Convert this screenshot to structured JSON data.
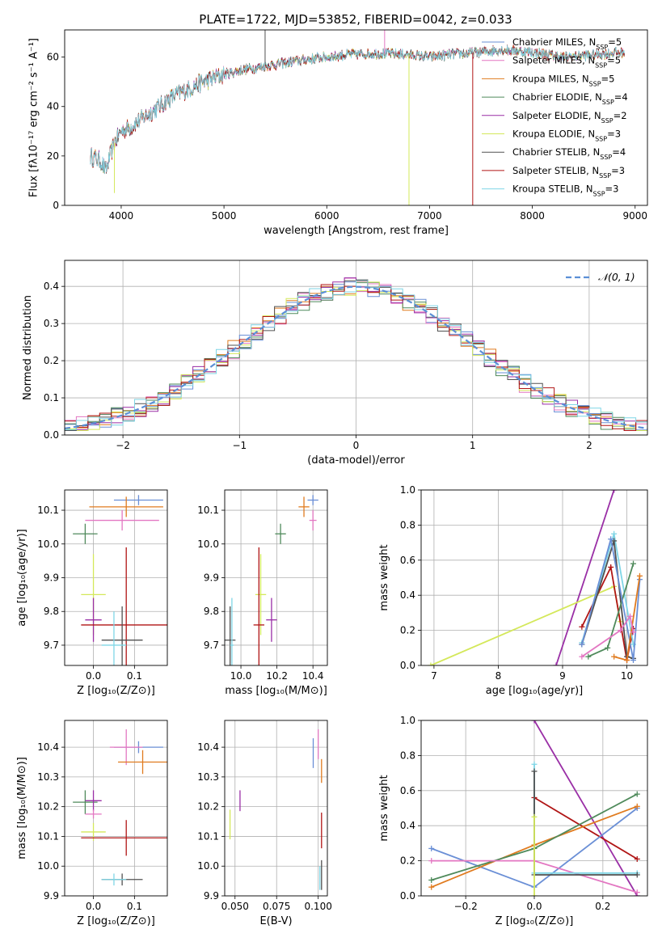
{
  "title": "PLATE=1722, MJD=53852, FIBERID=0042, z=0.033",
  "chart_data": [
    {
      "id": "spectrum",
      "type": "line",
      "xlabel": "wavelength [Angstrom, rest frame]",
      "ylabel": "Flux [fλ10⁻¹⁷ erg cm⁻² s⁻¹ A⁻¹]",
      "xlim": [
        3450,
        9120
      ],
      "ylim": [
        0,
        71
      ],
      "xticks": [
        4000,
        5000,
        6000,
        7000,
        8000,
        9000
      ],
      "yticks": [
        0,
        20,
        40,
        60
      ],
      "grid": false,
      "legend_position": "top-right",
      "series": [
        {
          "name": "Chabrier MILES, N_SSP=5",
          "label_main": "Chabrier MILES, N",
          "label_sub": "SSP",
          "label_tail": "=5",
          "color": "#6a8fd6"
        },
        {
          "name": "Salpeter MILES, N_SSP=5",
          "label_main": "Salpeter MILES, N",
          "label_sub": "SSP",
          "label_tail": "=5",
          "color": "#e377c2"
        },
        {
          "name": "Kroupa MILES, N_SSP=5",
          "label_main": "Kroupa MILES, N",
          "label_sub": "SSP",
          "label_tail": "=5",
          "color": "#e07b1f"
        },
        {
          "name": "Chabrier ELODIE, N_SSP=4",
          "label_main": "Chabrier ELODIE, N",
          "label_sub": "SSP",
          "label_tail": "=4",
          "color": "#4f8a5b"
        },
        {
          "name": "Salpeter ELODIE, N_SSP=2",
          "label_main": "Salpeter ELODIE, N",
          "label_sub": "SSP",
          "label_tail": "=2",
          "color": "#9a2fa6"
        },
        {
          "name": "Kroupa ELODIE, N_SSP=3",
          "label_main": "Kroupa ELODIE, N",
          "label_sub": "SSP",
          "label_tail": "=3",
          "color": "#d4e85a"
        },
        {
          "name": "Chabrier STELIB, N_SSP=4",
          "label_main": "Chabrier STELIB, N",
          "label_sub": "SSP",
          "label_tail": "=4",
          "color": "#505050"
        },
        {
          "name": "Salpeter STELIB, N_SSP=3",
          "label_main": "Salpeter STELIB, N",
          "label_sub": "SSP",
          "label_tail": "=3",
          "color": "#b01515"
        },
        {
          "name": "Kroupa STELIB, N_SSP=3",
          "label_main": "Kroupa STELIB, N",
          "label_sub": "SSP",
          "label_tail": "=3",
          "color": "#7fd6e6"
        }
      ],
      "continuum": [
        [
          3700,
          20
        ],
        [
          3800,
          18
        ],
        [
          3850,
          14
        ],
        [
          3930,
          25
        ],
        [
          4000,
          30
        ],
        [
          4100,
          32
        ],
        [
          4300,
          38
        ],
        [
          4500,
          44
        ],
        [
          4800,
          50
        ],
        [
          5000,
          53
        ],
        [
          5200,
          55
        ],
        [
          5500,
          57
        ],
        [
          5800,
          59
        ],
        [
          6000,
          60
        ],
        [
          6200,
          61
        ],
        [
          6500,
          61.5
        ],
        [
          6800,
          61
        ],
        [
          7000,
          60
        ],
        [
          7200,
          61
        ],
        [
          7500,
          62
        ],
        [
          7700,
          63
        ],
        [
          8000,
          62
        ],
        [
          8300,
          60
        ],
        [
          8600,
          61
        ],
        [
          8900,
          62
        ]
      ],
      "features": [
        {
          "x": 3934,
          "y": 5,
          "color": "#d4e85a"
        },
        {
          "x": 5400,
          "y": 71,
          "color": "#505050"
        },
        {
          "x": 6563,
          "y": 71,
          "color": "#e377c2"
        },
        {
          "x": 6800,
          "y": 0,
          "color": "#d4e85a"
        },
        {
          "x": 7420,
          "y": 0,
          "color": "#b01515"
        }
      ]
    },
    {
      "id": "residuals",
      "type": "bar",
      "xlabel": "(data-model)/error",
      "ylabel": "Normed distribution",
      "xlim": [
        -2.5,
        2.5
      ],
      "ylim": [
        0,
        0.47
      ],
      "xticks": [
        -2,
        -1,
        0,
        1,
        2
      ],
      "yticks": [
        0.0,
        0.1,
        0.2,
        0.3,
        0.4
      ],
      "grid": true,
      "bin_width": 0.1,
      "legend_label": "𝒩(0, 1)",
      "legend_position": "top-right",
      "reference_curve_color": "#5b8fd6"
    },
    {
      "id": "age-vs-Z",
      "type": "scatter",
      "xlabel": "Z [log₁₀(Z/Z⊙)]",
      "ylabel": "age  [log₁₀(age/yr)]",
      "xlim": [
        -0.07,
        0.18
      ],
      "ylim": [
        9.64,
        10.16
      ],
      "xticks": [
        0.0,
        0.1
      ],
      "yticks": [
        9.7,
        9.8,
        9.9,
        10.0,
        10.1
      ],
      "grid": true,
      "points": [
        {
          "x": 0.11,
          "y": 10.13,
          "ex": 0.06,
          "ey": 0.015,
          "color": "#6a8fd6"
        },
        {
          "x": 0.08,
          "y": 10.11,
          "ex": 0.09,
          "ey": 0.03,
          "color": "#e07b1f"
        },
        {
          "x": 0.07,
          "y": 10.07,
          "ex": 0.09,
          "ey": 0.03,
          "color": "#e377c2"
        },
        {
          "x": -0.02,
          "y": 10.03,
          "ex": 0.03,
          "ey": 0.03,
          "color": "#4f8a5b"
        },
        {
          "x": 0.0,
          "y": 9.85,
          "ex": 0.03,
          "ey": 0.12,
          "color": "#d4e85a"
        },
        {
          "x": 0.0,
          "y": 9.775,
          "ex": 0.02,
          "ey": 0.065,
          "color": "#9a2fa6"
        },
        {
          "x": 0.08,
          "y": 9.76,
          "ex": 0.11,
          "ey": 0.23,
          "color": "#b01515"
        },
        {
          "x": 0.07,
          "y": 9.715,
          "ex": 0.05,
          "ey": 0.1,
          "color": "#505050"
        },
        {
          "x": 0.05,
          "y": 9.7,
          "ex": 0.03,
          "ey": 0.1,
          "color": "#7fd6e6"
        }
      ]
    },
    {
      "id": "age-vs-mass",
      "type": "scatter",
      "xlabel": "mass [log₁₀(M/M⊙)]",
      "ylabel": "",
      "xlim": [
        9.91,
        10.48
      ],
      "ylim": [
        9.64,
        10.16
      ],
      "xticks": [
        10.0,
        10.2,
        10.4
      ],
      "yticks": [
        9.7,
        9.8,
        9.9,
        10.0,
        10.1
      ],
      "grid": true,
      "points": [
        {
          "x": 10.4,
          "y": 10.13,
          "ex": 0.03,
          "ey": 0.015,
          "color": "#6a8fd6"
        },
        {
          "x": 10.35,
          "y": 10.11,
          "ex": 0.03,
          "ey": 0.03,
          "color": "#e07b1f"
        },
        {
          "x": 10.4,
          "y": 10.07,
          "ex": 0.02,
          "ey": 0.03,
          "color": "#e377c2"
        },
        {
          "x": 10.22,
          "y": 10.03,
          "ex": 0.03,
          "ey": 0.03,
          "color": "#4f8a5b"
        },
        {
          "x": 10.11,
          "y": 9.85,
          "ex": 0.03,
          "ey": 0.12,
          "color": "#d4e85a"
        },
        {
          "x": 10.17,
          "y": 9.775,
          "ex": 0.03,
          "ey": 0.065,
          "color": "#9a2fa6"
        },
        {
          "x": 10.1,
          "y": 9.76,
          "ex": 0.03,
          "ey": 0.23,
          "color": "#b01515"
        },
        {
          "x": 9.94,
          "y": 9.715,
          "ex": 0.03,
          "ey": 0.1,
          "color": "#505050"
        },
        {
          "x": 9.95,
          "y": 9.7,
          "ex": 0.01,
          "ey": 0.14,
          "color": "#7fd6e6"
        }
      ]
    },
    {
      "id": "weight-vs-age",
      "type": "line",
      "xlabel": "age  [log₁₀(age/yr)]",
      "ylabel": "mass weight",
      "xlim": [
        6.8,
        10.32
      ],
      "ylim": [
        0,
        1.0
      ],
      "xticks": [
        7,
        8,
        9,
        10
      ],
      "yticks": [
        0.0,
        0.2,
        0.4,
        0.6,
        0.8,
        1.0
      ],
      "grid": true,
      "series": [
        {
          "color": "#9a2fa6",
          "points": [
            [
              8.9,
              0.0
            ],
            [
              9.8,
              1.0
            ]
          ]
        },
        {
          "color": "#d4e85a",
          "points": [
            [
              6.95,
              0.0
            ],
            [
              9.8,
              0.45
            ],
            [
              9.9,
              0.25
            ]
          ]
        },
        {
          "color": "#b01515",
          "points": [
            [
              9.3,
              0.22
            ],
            [
              9.75,
              0.56
            ],
            [
              10.0,
              0.03
            ],
            [
              10.1,
              0.21
            ]
          ]
        },
        {
          "color": "#7fd6e6",
          "points": [
            [
              9.3,
              0.13
            ],
            [
              9.8,
              0.75
            ],
            [
              10.1,
              0.12
            ]
          ]
        },
        {
          "color": "#505050",
          "points": [
            [
              9.3,
              0.12
            ],
            [
              9.8,
              0.71
            ],
            [
              10.0,
              0.05
            ],
            [
              10.1,
              0.04
            ]
          ]
        },
        {
          "color": "#4f8a5b",
          "points": [
            [
              9.4,
              0.05
            ],
            [
              9.7,
              0.1
            ],
            [
              10.1,
              0.58
            ]
          ]
        },
        {
          "color": "#6a8fd6",
          "points": [
            [
              9.3,
              0.12
            ],
            [
              9.75,
              0.72
            ],
            [
              10.1,
              0.03
            ],
            [
              10.2,
              0.49
            ]
          ]
        },
        {
          "color": "#e07b1f",
          "points": [
            [
              9.8,
              0.05
            ],
            [
              10.0,
              0.03
            ],
            [
              10.2,
              0.51
            ]
          ]
        },
        {
          "color": "#e377c2",
          "points": [
            [
              9.3,
              0.05
            ],
            [
              9.9,
              0.2
            ],
            [
              10.05,
              0.28
            ],
            [
              10.1,
              0.19
            ]
          ]
        }
      ]
    },
    {
      "id": "mass-vs-Z",
      "type": "scatter",
      "xlabel": "Z [log₁₀(Z/Z⊙)]",
      "ylabel": "mass [log₁₀(M/M⊙)]",
      "xlim": [
        -0.07,
        0.18
      ],
      "ylim": [
        9.9,
        10.49
      ],
      "xticks": [
        0.0,
        0.1
      ],
      "yticks": [
        9.9,
        10.0,
        10.1,
        10.2,
        10.3,
        10.4
      ],
      "grid": true,
      "points": [
        {
          "x": 0.11,
          "y": 10.4,
          "ex": 0.06,
          "ey": 0.02,
          "color": "#6a8fd6"
        },
        {
          "x": 0.08,
          "y": 10.4,
          "ex": 0.04,
          "ey": 0.06,
          "color": "#e377c2"
        },
        {
          "x": 0.12,
          "y": 10.35,
          "ex": 0.06,
          "ey": 0.04,
          "color": "#e07b1f"
        },
        {
          "x": -0.02,
          "y": 10.215,
          "ex": 0.03,
          "ey": 0.04,
          "color": "#4f8a5b"
        },
        {
          "x": 0.0,
          "y": 10.22,
          "ex": 0.02,
          "ey": 0.035,
          "color": "#9a2fa6"
        },
        {
          "x": 0.0,
          "y": 10.175,
          "ex": 0.02,
          "ey": 0.015,
          "color": "#e377c2"
        },
        {
          "x": 0.0,
          "y": 10.115,
          "ex": 0.03,
          "ey": 0.03,
          "color": "#d4e85a"
        },
        {
          "x": 0.08,
          "y": 10.095,
          "ex": 0.11,
          "ey": 0.06,
          "color": "#b01515"
        },
        {
          "x": 0.07,
          "y": 9.955,
          "ex": 0.05,
          "ey": 0.02,
          "color": "#505050"
        },
        {
          "x": 0.05,
          "y": 9.955,
          "ex": 0.03,
          "ey": 0.02,
          "color": "#7fd6e6"
        }
      ]
    },
    {
      "id": "mass-vs-EBV",
      "type": "scatter",
      "xlabel": "E(B-V)",
      "ylabel": "",
      "xlim": [
        0.0438,
        0.1055
      ],
      "ylim": [
        9.9,
        10.49
      ],
      "xticks": [
        0.05,
        0.075,
        0.1
      ],
      "yticks": [
        9.9,
        10.0,
        10.1,
        10.2,
        10.3,
        10.4
      ],
      "grid": true,
      "points": [
        {
          "x": 0.097,
          "y": 10.38,
          "ex": 0,
          "ey": 0.05,
          "color": "#6a8fd6"
        },
        {
          "x": 0.1,
          "y": 10.41,
          "ex": 0,
          "ey": 0.05,
          "color": "#e377c2"
        },
        {
          "x": 0.102,
          "y": 10.32,
          "ex": 0,
          "ey": 0.04,
          "color": "#e07b1f"
        },
        {
          "x": 0.053,
          "y": 10.22,
          "ex": 0,
          "ey": 0.035,
          "color": "#9a2fa6"
        },
        {
          "x": 0.047,
          "y": 10.14,
          "ex": 0,
          "ey": 0.05,
          "color": "#d4e85a"
        },
        {
          "x": 0.102,
          "y": 10.12,
          "ex": 0,
          "ey": 0.06,
          "color": "#b01515"
        },
        {
          "x": 0.102,
          "y": 9.97,
          "ex": 0,
          "ey": 0.05,
          "color": "#505050"
        },
        {
          "x": 0.101,
          "y": 9.96,
          "ex": 0,
          "ey": 0.04,
          "color": "#7fd6e6"
        }
      ]
    },
    {
      "id": "weight-vs-Z",
      "type": "line",
      "xlabel": "Z [log₁₀(Z/Z⊙)]",
      "ylabel": "mass weight",
      "xlim": [
        -0.33,
        0.33
      ],
      "ylim": [
        0,
        1.0
      ],
      "xticks": [
        -0.2,
        0.0,
        0.2
      ],
      "yticks": [
        0.0,
        0.2,
        0.4,
        0.6,
        0.8,
        1.0
      ],
      "grid": true,
      "series": [
        {
          "color": "#9a2fa6",
          "points": [
            [
              0.0,
              1.0
            ],
            [
              0.3,
              0.0
            ]
          ]
        },
        {
          "color": "#b01515",
          "points": [
            [
              0.0,
              0.56
            ],
            [
              0.3,
              0.21
            ]
          ]
        },
        {
          "color": "#6a8fd6",
          "points": [
            [
              -0.3,
              0.27
            ],
            [
              0.0,
              0.05
            ],
            [
              0.3,
              0.5
            ]
          ]
        },
        {
          "color": "#e07b1f",
          "points": [
            [
              -0.3,
              0.05
            ],
            [
              0.0,
              0.29
            ],
            [
              0.3,
              0.51
            ]
          ]
        },
        {
          "color": "#4f8a5b",
          "points": [
            [
              -0.3,
              0.09
            ],
            [
              0.0,
              0.27
            ],
            [
              0.3,
              0.58
            ]
          ]
        },
        {
          "color": "#e377c2",
          "points": [
            [
              -0.3,
              0.2
            ],
            [
              0.0,
              0.2
            ],
            [
              0.3,
              0.02
            ]
          ]
        },
        {
          "color": "#7fd6e6",
          "points": [
            [
              0.0,
              0.75
            ],
            [
              0.0,
              0.13
            ],
            [
              0.3,
              0.13
            ]
          ]
        },
        {
          "color": "#505050",
          "points": [
            [
              0.0,
              0.71
            ],
            [
              0.0,
              0.12
            ],
            [
              0.3,
              0.12
            ]
          ]
        },
        {
          "color": "#d4e85a",
          "points": [
            [
              0.0,
              0.45
            ],
            [
              0.0,
              0.0
            ]
          ]
        }
      ]
    }
  ]
}
